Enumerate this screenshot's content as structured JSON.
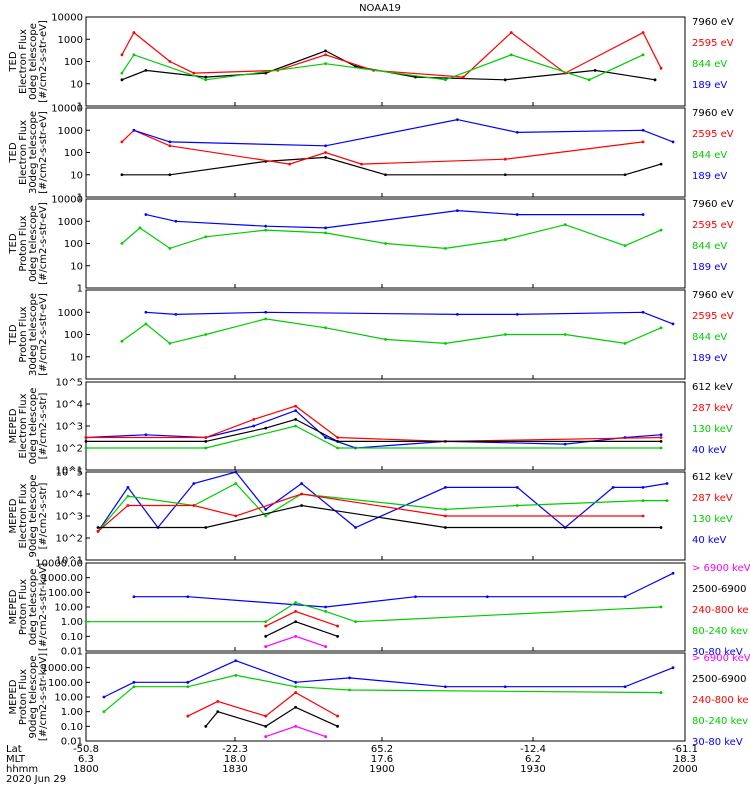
{
  "chart_data": [
    {
      "type": "line",
      "title": "NOAA19",
      "ylabel": [
        "TED",
        "Electron Flux",
        "0deg telescope",
        "[#/cm2-s-str-eV]"
      ],
      "yscale": "log",
      "ylim": [
        1,
        10000
      ],
      "yticks": [
        "10000",
        "1000",
        "100",
        "10",
        "1"
      ],
      "legend": [
        {
          "label": "7960 eV",
          "color": "#000000"
        },
        {
          "label": "2595 eV",
          "color": "#ff0000"
        },
        {
          "label": "844 eV",
          "color": "#00cc00"
        },
        {
          "label": "189 eV",
          "color": "#0000ff"
        }
      ],
      "series": [
        {
          "color": "#000000",
          "x": [
            6,
            10,
            20,
            30,
            40,
            45,
            55,
            70,
            85,
            95
          ],
          "y": [
            15,
            40,
            20,
            30,
            300,
            60,
            20,
            15,
            40,
            15
          ]
        },
        {
          "color": "#ff0000",
          "x": [
            6,
            8,
            14,
            18,
            32,
            40,
            48,
            63,
            71,
            80,
            93,
            96
          ],
          "y": [
            200,
            2000,
            100,
            30,
            40,
            200,
            40,
            20,
            2000,
            30,
            2000,
            50
          ]
        },
        {
          "color": "#00cc00",
          "x": [
            6,
            8,
            20,
            40,
            60,
            71,
            84,
            93
          ],
          "y": [
            30,
            200,
            15,
            80,
            15,
            200,
            15,
            200
          ]
        }
      ]
    },
    {
      "type": "line",
      "ylabel": [
        "TED",
        "Electron Flux",
        "30deg telescope",
        "[#/cm2-s-str-eV]"
      ],
      "yscale": "log",
      "ylim": [
        1,
        10000
      ],
      "yticks": [
        "10000",
        "1000",
        "100",
        "10",
        "1"
      ],
      "legend": [
        {
          "label": "7960 eV",
          "color": "#000000"
        },
        {
          "label": "2595 eV",
          "color": "#ff0000"
        },
        {
          "label": "844 eV",
          "color": "#00cc00"
        },
        {
          "label": "189 eV",
          "color": "#0000ff"
        }
      ],
      "series": [
        {
          "color": "#000000",
          "x": [
            6,
            14,
            30,
            40,
            50,
            70,
            90,
            96
          ],
          "y": [
            10,
            10,
            40,
            60,
            10,
            10,
            10,
            30
          ]
        },
        {
          "color": "#ff0000",
          "x": [
            6,
            8,
            14,
            34,
            40,
            46,
            70,
            93
          ],
          "y": [
            300,
            1000,
            200,
            30,
            100,
            30,
            50,
            300
          ]
        },
        {
          "color": "#0000ff",
          "x": [
            8,
            14,
            40,
            62,
            72,
            93,
            98
          ],
          "y": [
            1000,
            300,
            200,
            3000,
            800,
            1000,
            300
          ]
        }
      ]
    },
    {
      "type": "line",
      "ylabel": [
        "TED",
        "Proton Flux",
        "0deg telescope",
        "[#/cm2-s-str-eV]"
      ],
      "yscale": "log",
      "ylim": [
        1,
        10000
      ],
      "yticks": [
        "10000",
        "1000",
        "100",
        "10",
        "1"
      ],
      "legend": [
        {
          "label": "7960 eV",
          "color": "#000000"
        },
        {
          "label": "2595 eV",
          "color": "#ff0000"
        },
        {
          "label": "844 eV",
          "color": "#00cc00"
        },
        {
          "label": "189 eV",
          "color": "#0000ff"
        }
      ],
      "series": [
        {
          "color": "#00cc00",
          "x": [
            6,
            9,
            14,
            20,
            30,
            40,
            50,
            60,
            70,
            80,
            90,
            96
          ],
          "y": [
            100,
            500,
            60,
            200,
            400,
            300,
            100,
            60,
            150,
            700,
            80,
            400
          ]
        },
        {
          "color": "#0000ff",
          "x": [
            10,
            15,
            30,
            40,
            62,
            72,
            93
          ],
          "y": [
            2000,
            1000,
            600,
            500,
            3000,
            2000,
            2000
          ]
        }
      ]
    },
    {
      "type": "line",
      "ylabel": [
        "TED",
        "Proton Flux",
        "30deg telescope",
        "[#/cm2-s-str-eV]"
      ],
      "yscale": "log",
      "ylim": [
        1,
        10000
      ],
      "yticks": [
        "1000",
        "100",
        "10"
      ],
      "legend": [
        {
          "label": "7960 eV",
          "color": "#000000"
        },
        {
          "label": "2595 eV",
          "color": "#ff0000"
        },
        {
          "label": "844 eV",
          "color": "#00cc00"
        },
        {
          "label": "189 eV",
          "color": "#0000ff"
        }
      ],
      "series": [
        {
          "color": "#00cc00",
          "x": [
            6,
            10,
            14,
            20,
            30,
            40,
            50,
            60,
            70,
            80,
            90,
            96
          ],
          "y": [
            50,
            300,
            40,
            100,
            500,
            200,
            60,
            40,
            100,
            100,
            40,
            200
          ]
        },
        {
          "color": "#0000ff",
          "x": [
            10,
            15,
            30,
            62,
            72,
            93,
            98
          ],
          "y": [
            1000,
            800,
            1000,
            800,
            800,
            1000,
            300
          ]
        }
      ]
    },
    {
      "type": "line",
      "ylabel": [
        "MEPED",
        "Electron Flux",
        "0deg telescope",
        "[#/cm2-s-str]"
      ],
      "yscale": "log",
      "ylim": [
        10,
        100000
      ],
      "yticks": [
        "10^5",
        "10^4",
        "10^3",
        "10^2",
        "10^1"
      ],
      "legend": [
        {
          "label": "612 keV",
          "color": "#000000"
        },
        {
          "label": "287 keV",
          "color": "#ff0000"
        },
        {
          "label": "130 keV",
          "color": "#00cc00"
        },
        {
          "label": "40 keV",
          "color": "#0000ff"
        }
      ],
      "series": [
        {
          "color": "#0000ff",
          "x": [
            0,
            10,
            20,
            28,
            35,
            40,
            45,
            60,
            80,
            90,
            96
          ],
          "y": [
            300,
            400,
            300,
            1000,
            5000,
            300,
            100,
            200,
            150,
            300,
            400
          ]
        },
        {
          "color": "#ff0000",
          "x": [
            0,
            20,
            28,
            35,
            42,
            60,
            96
          ],
          "y": [
            300,
            300,
            2000,
            8000,
            300,
            200,
            300
          ]
        },
        {
          "color": "#00cc00",
          "x": [
            0,
            20,
            35,
            42,
            96
          ],
          "y": [
            100,
            100,
            1000,
            100,
            100
          ]
        },
        {
          "color": "#000000",
          "x": [
            0,
            20,
            30,
            35,
            42,
            96
          ],
          "y": [
            200,
            200,
            800,
            2000,
            200,
            200
          ]
        }
      ]
    },
    {
      "type": "line",
      "ylabel": [
        "MEPED",
        "Electron Flux",
        "90deg telescope",
        "[#/cm2-s-str]"
      ],
      "yscale": "log",
      "ylim": [
        10,
        100000
      ],
      "yticks": [
        "10^5",
        "10^4",
        "10^3",
        "10^2",
        "10^1"
      ],
      "legend": [
        {
          "label": "612 keV",
          "color": "#000000"
        },
        {
          "label": "287 keV",
          "color": "#ff0000"
        },
        {
          "label": "130 keV",
          "color": "#00cc00"
        },
        {
          "label": "40 keV",
          "color": "#0000ff"
        }
      ],
      "series": [
        {
          "color": "#0000ff",
          "x": [
            2,
            7,
            12,
            18,
            25,
            30,
            36,
            45,
            60,
            72,
            80,
            88,
            93,
            97
          ],
          "y": [
            200,
            20000,
            300,
            30000,
            100000,
            2000,
            30000,
            300,
            20000,
            20000,
            300,
            20000,
            20000,
            30000
          ]
        },
        {
          "color": "#00cc00",
          "x": [
            2,
            7,
            18,
            25,
            30,
            36,
            60,
            72,
            93,
            97
          ],
          "y": [
            200,
            8000,
            3000,
            30000,
            1000,
            10000,
            2000,
            3000,
            5000,
            5000
          ]
        },
        {
          "color": "#ff0000",
          "x": [
            2,
            7,
            18,
            25,
            36,
            60,
            93
          ],
          "y": [
            200,
            3000,
            3000,
            1000,
            10000,
            1000,
            1000
          ]
        },
        {
          "color": "#000000",
          "x": [
            2,
            20,
            36,
            60,
            96
          ],
          "y": [
            300,
            300,
            3000,
            300,
            300
          ]
        }
      ]
    },
    {
      "type": "line",
      "ylabel": [
        "MEPED",
        "Proton Flux",
        "0deg telescope",
        "[#/cm2-s-str-keV]"
      ],
      "yscale": "log",
      "ylim": [
        0.01,
        10000
      ],
      "yticks": [
        "10000.00",
        "1000.00",
        "100.00",
        "10.00",
        "1.00",
        "0.10",
        "0.01"
      ],
      "legend": [
        {
          "label": "> 6900 keV",
          "color": "#ff00ff"
        },
        {
          "label": "2500-6900",
          "color": "#000000"
        },
        {
          "label": "240-800 ke",
          "color": "#ff0000"
        },
        {
          "label": "80-240 kev",
          "color": "#00cc00"
        },
        {
          "label": "30-80 keV",
          "color": "#0000ff"
        }
      ],
      "series": [
        {
          "color": "#0000ff",
          "x": [
            8,
            17,
            40,
            55,
            67,
            90,
            98
          ],
          "y": [
            50,
            50,
            10,
            50,
            50,
            50,
            2000
          ]
        },
        {
          "color": "#00cc00",
          "x": [
            0,
            30,
            35,
            40,
            45,
            96
          ],
          "y": [
            1,
            1,
            20,
            5,
            1,
            10
          ]
        },
        {
          "color": "#ff0000",
          "x": [
            30,
            35,
            42
          ],
          "y": [
            0.5,
            5,
            0.5
          ]
        },
        {
          "color": "#000000",
          "x": [
            30,
            35,
            42
          ],
          "y": [
            0.1,
            1,
            0.1
          ]
        },
        {
          "color": "#ff00ff",
          "x": [
            30,
            35,
            40
          ],
          "y": [
            0.02,
            0.1,
            0.02
          ]
        }
      ]
    },
    {
      "type": "line",
      "ylabel": [
        "MEPED",
        "Proton Flux",
        "90deg telescope",
        "[#/cm2-s-str-keV]"
      ],
      "yscale": "log",
      "ylim": [
        0.01,
        10000
      ],
      "yticks": [
        "1000.00",
        "100.00",
        "10.00",
        "1.00",
        "0.10",
        "0.01"
      ],
      "legend": [
        {
          "label": "> 6900 keV",
          "color": "#ff00ff"
        },
        {
          "label": "2500-6900",
          "color": "#000000"
        },
        {
          "label": "240-800 ke",
          "color": "#ff0000"
        },
        {
          "label": "80-240 kev",
          "color": "#00cc00"
        },
        {
          "label": "30-80 keV",
          "color": "#0000ff"
        }
      ],
      "series": [
        {
          "color": "#0000ff",
          "x": [
            3,
            8,
            17,
            25,
            35,
            44,
            60,
            70,
            90,
            98
          ],
          "y": [
            10,
            100,
            100,
            3000,
            100,
            200,
            50,
            50,
            50,
            1000
          ]
        },
        {
          "color": "#00cc00",
          "x": [
            3,
            8,
            17,
            25,
            35,
            44,
            96
          ],
          "y": [
            1,
            50,
            50,
            300,
            50,
            30,
            20
          ]
        },
        {
          "color": "#ff0000",
          "x": [
            17,
            22,
            30,
            35,
            42
          ],
          "y": [
            0.5,
            5,
            0.5,
            20,
            0.5
          ]
        },
        {
          "color": "#000000",
          "x": [
            20,
            22,
            30,
            35,
            42
          ],
          "y": [
            0.1,
            1,
            0.1,
            2,
            0.1
          ]
        },
        {
          "color": "#ff00ff",
          "x": [
            30,
            35,
            40
          ],
          "y": [
            0.02,
            0.1,
            0.02
          ]
        }
      ]
    }
  ],
  "footer": {
    "row_labels": [
      "Lat",
      "MLT",
      "hhmm"
    ],
    "date": "2020 Jun 29",
    "columns": [
      {
        "lat": "-50.8",
        "mlt": "6.3",
        "hhmm": "1800"
      },
      {
        "lat": "-22.3",
        "mlt": "18.0",
        "hhmm": "1830"
      },
      {
        "lat": "65.2",
        "mlt": "17.6",
        "hhmm": "1900"
      },
      {
        "lat": "-12.4",
        "mlt": "6.2",
        "hhmm": "1930"
      },
      {
        "lat": "-61.1",
        "mlt": "18.3",
        "hhmm": "2000"
      }
    ]
  }
}
